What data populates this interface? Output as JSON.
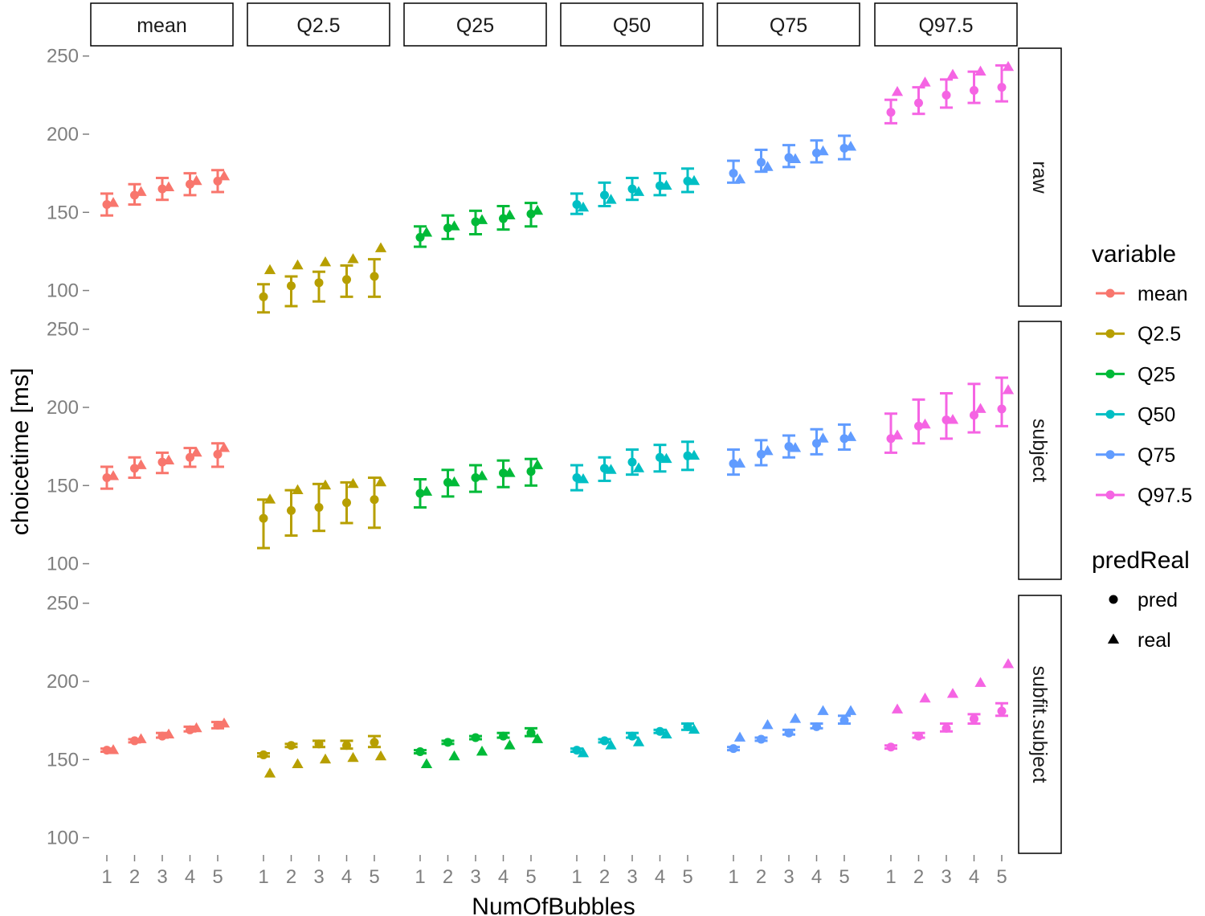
{
  "chart_data": {
    "type": "scatter",
    "xlabel": "NumOfBubbles",
    "ylabel": "choicetime [ms]",
    "x": [
      1,
      2,
      3,
      4,
      5
    ],
    "ylim": [
      90,
      255
    ],
    "y_ticks": [
      100,
      150,
      200,
      250
    ],
    "grid": false,
    "legend_position": "right",
    "columns": [
      "mean",
      "Q2.5",
      "Q25",
      "Q50",
      "Q75",
      "Q97.5"
    ],
    "rows": [
      "raw",
      "subject",
      "subfit.subject"
    ],
    "colors": {
      "mean": "#f8766d",
      "Q2.5": "#b79f00",
      "Q25": "#00ba38",
      "Q50": "#00bfc4",
      "Q75": "#619cff",
      "Q97.5": "#f564e3"
    },
    "legend_variable": {
      "title": "variable",
      "items": [
        "mean",
        "Q2.5",
        "Q25",
        "Q50",
        "Q75",
        "Q97.5"
      ]
    },
    "legend_shape": {
      "title": "predReal",
      "items": [
        {
          "label": "pred",
          "shape": "circle"
        },
        {
          "label": "real",
          "shape": "triangle"
        }
      ]
    },
    "panels": {
      "raw": {
        "mean": {
          "pred": [
            155,
            161,
            165,
            168,
            170
          ],
          "lower": [
            148,
            155,
            158,
            161,
            163
          ],
          "upper": [
            162,
            168,
            172,
            175,
            177
          ],
          "real": [
            156,
            163,
            166,
            170,
            173
          ]
        },
        "Q2.5": {
          "pred": [
            96,
            103,
            105,
            107,
            109
          ],
          "lower": [
            86,
            90,
            93,
            96,
            96
          ],
          "upper": [
            104,
            109,
            112,
            116,
            120
          ],
          "real": [
            113,
            116,
            118,
            120,
            127
          ]
        },
        "Q25": {
          "pred": [
            134,
            140,
            144,
            146,
            149
          ],
          "lower": [
            128,
            133,
            136,
            139,
            141
          ],
          "upper": [
            141,
            148,
            151,
            154,
            156
          ],
          "real": [
            137,
            141,
            145,
            148,
            151
          ]
        },
        "Q50": {
          "pred": [
            155,
            161,
            165,
            167,
            170
          ],
          "lower": [
            149,
            154,
            158,
            161,
            163
          ],
          "upper": [
            162,
            169,
            172,
            175,
            178
          ],
          "real": [
            153,
            158,
            163,
            167,
            170
          ]
        },
        "Q75": {
          "pred": [
            175,
            182,
            185,
            188,
            191
          ],
          "lower": [
            169,
            176,
            179,
            182,
            184
          ],
          "upper": [
            183,
            190,
            193,
            196,
            199
          ],
          "real": [
            171,
            179,
            184,
            189,
            192
          ]
        },
        "Q97.5": {
          "pred": [
            214,
            220,
            225,
            228,
            230
          ],
          "lower": [
            207,
            213,
            217,
            220,
            221
          ],
          "upper": [
            222,
            230,
            235,
            240,
            244
          ],
          "real": [
            227,
            233,
            238,
            240,
            243
          ]
        }
      },
      "subject": {
        "mean": {
          "pred": [
            155,
            161,
            165,
            168,
            170
          ],
          "lower": [
            148,
            155,
            158,
            162,
            162
          ],
          "upper": [
            162,
            168,
            171,
            174,
            177
          ],
          "real": [
            156,
            163,
            166,
            171,
            174
          ]
        },
        "Q2.5": {
          "pred": [
            129,
            134,
            136,
            139,
            141
          ],
          "lower": [
            110,
            118,
            121,
            126,
            123
          ],
          "upper": [
            141,
            147,
            151,
            152,
            155
          ],
          "real": [
            141,
            147,
            150,
            151,
            152
          ]
        },
        "Q25": {
          "pred": [
            145,
            152,
            155,
            158,
            159
          ],
          "lower": [
            136,
            143,
            146,
            149,
            150
          ],
          "upper": [
            154,
            160,
            163,
            166,
            167
          ],
          "real": [
            146,
            152,
            156,
            158,
            163
          ]
        },
        "Q50": {
          "pred": [
            155,
            161,
            165,
            168,
            169
          ],
          "lower": [
            147,
            153,
            157,
            159,
            160
          ],
          "upper": [
            163,
            168,
            173,
            176,
            178
          ],
          "real": [
            154,
            160,
            161,
            167,
            169
          ]
        },
        "Q75": {
          "pred": [
            164,
            170,
            175,
            177,
            180
          ],
          "lower": [
            157,
            163,
            168,
            170,
            173
          ],
          "upper": [
            173,
            179,
            182,
            186,
            189
          ],
          "real": [
            164,
            172,
            174,
            180,
            181
          ]
        },
        "Q97.5": {
          "pred": [
            180,
            188,
            192,
            195,
            199
          ],
          "lower": [
            171,
            177,
            180,
            184,
            188
          ],
          "upper": [
            196,
            205,
            209,
            215,
            219
          ],
          "real": [
            182,
            189,
            192,
            199,
            211
          ]
        }
      },
      "subfit.subject": {
        "mean": {
          "pred": [
            156,
            162,
            165,
            169,
            172
          ],
          "lower": [
            155,
            161,
            164,
            168,
            170
          ],
          "upper": [
            157,
            163,
            167,
            171,
            174
          ],
          "real": [
            156,
            163,
            166,
            170,
            173
          ]
        },
        "Q2.5": {
          "pred": [
            153,
            159,
            160,
            159,
            161
          ],
          "lower": [
            152,
            158,
            158,
            157,
            158
          ],
          "upper": [
            154,
            160,
            162,
            162,
            165
          ],
          "real": [
            141,
            147,
            150,
            151,
            152
          ]
        },
        "Q25": {
          "pred": [
            155,
            161,
            164,
            165,
            167
          ],
          "lower": [
            154,
            160,
            163,
            164,
            165
          ],
          "upper": [
            156,
            162,
            165,
            167,
            170
          ],
          "real": [
            147,
            152,
            155,
            159,
            163
          ]
        },
        "Q50": {
          "pred": [
            156,
            162,
            165,
            168,
            171
          ],
          "lower": [
            155,
            161,
            164,
            167,
            169
          ],
          "upper": [
            157,
            163,
            167,
            169,
            173
          ],
          "real": [
            154,
            159,
            161,
            166,
            169
          ]
        },
        "Q75": {
          "pred": [
            157,
            163,
            167,
            171,
            175
          ],
          "lower": [
            156,
            162,
            166,
            170,
            173
          ],
          "upper": [
            158,
            164,
            169,
            173,
            178
          ],
          "real": [
            164,
            172,
            176,
            181,
            181
          ]
        },
        "Q97.5": {
          "pred": [
            158,
            165,
            170,
            176,
            181
          ],
          "lower": [
            157,
            164,
            168,
            173,
            178
          ],
          "upper": [
            159,
            167,
            173,
            179,
            186
          ],
          "real": [
            182,
            189,
            192,
            199,
            211
          ]
        }
      }
    }
  }
}
